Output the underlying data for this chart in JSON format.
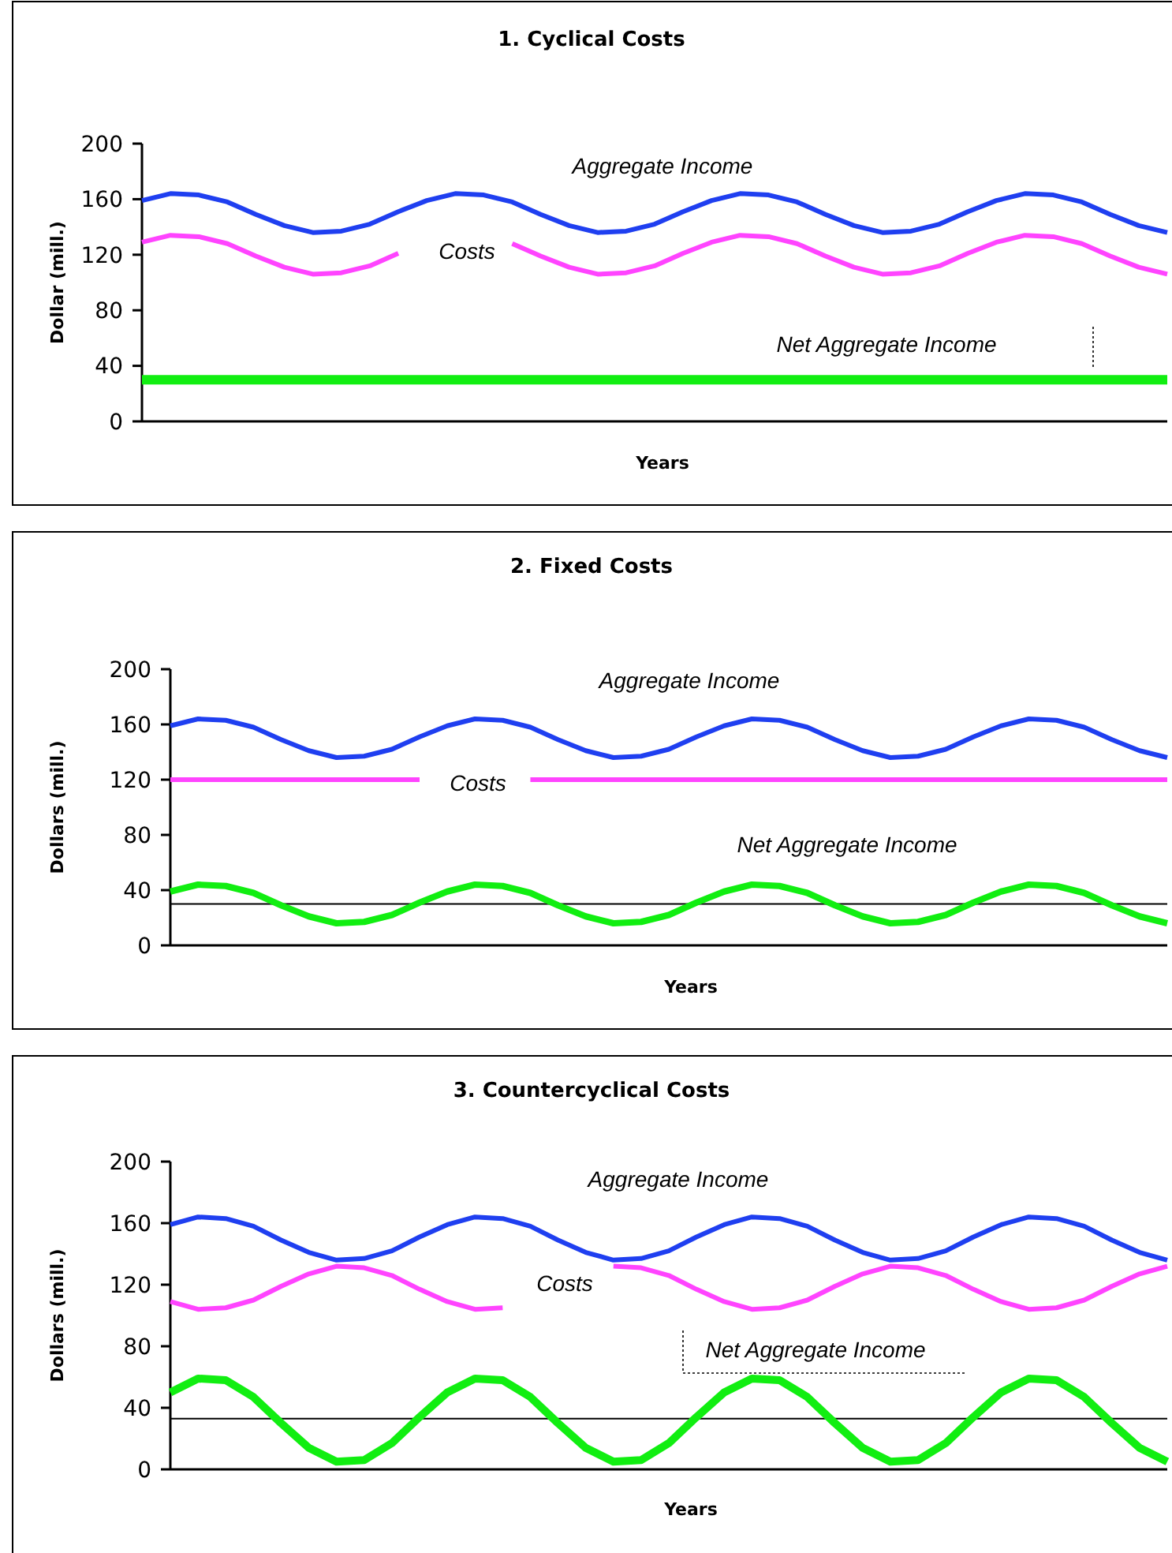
{
  "chart_data": [
    {
      "type": "line",
      "title": "1. Cyclical Costs",
      "xlabel": "Years",
      "ylabel": "Dollar (mill.)",
      "categories": [
        null,
        null,
        null,
        null,
        null,
        null,
        null,
        null,
        null,
        null,
        null,
        null,
        null,
        null,
        null,
        null,
        null,
        null,
        null,
        null,
        null,
        null,
        null,
        null,
        null,
        null,
        null,
        null,
        null,
        null,
        null,
        null,
        null,
        null,
        null,
        null,
        null
      ],
      "ylim": [
        0,
        200
      ],
      "yticks": [
        0,
        40,
        80,
        120,
        160,
        200
      ],
      "series": [
        {
          "name": "Aggregate Income",
          "color": "#1f3ff0",
          "values": [
            159,
            164,
            163,
            158,
            149,
            141,
            136,
            137,
            142,
            151,
            159,
            164,
            163,
            158,
            149,
            141,
            136,
            137,
            142,
            151,
            159,
            164,
            163,
            158,
            149,
            141,
            136,
            137,
            142,
            151,
            159,
            164,
            163,
            158,
            149,
            141,
            136
          ]
        },
        {
          "name": "Costs",
          "color": "#ff44ff",
          "values": [
            129,
            134,
            133,
            128,
            119,
            111,
            106,
            107,
            112,
            121,
            null,
            null,
            null,
            128,
            119,
            111,
            106,
            107,
            112,
            121,
            129,
            134,
            133,
            128,
            119,
            111,
            106,
            107,
            112,
            121,
            129,
            134,
            133,
            128,
            119,
            111,
            106
          ]
        },
        {
          "name": "Net Aggregate Income",
          "color": "#11ee11",
          "values": [
            30,
            30,
            30,
            30,
            30,
            30,
            30,
            30,
            30,
            30,
            30,
            30,
            30,
            30,
            30,
            30,
            30,
            30,
            30,
            30,
            30,
            30,
            30,
            30,
            30,
            30,
            30,
            30,
            30,
            30,
            30,
            30,
            30,
            30,
            30,
            30,
            30
          ]
        }
      ]
    },
    {
      "type": "line",
      "title": "2. Fixed Costs",
      "xlabel": "Years",
      "ylabel": "Dollars (mill.)",
      "categories": [
        null,
        null,
        null,
        null,
        null,
        null,
        null,
        null,
        null,
        null,
        null,
        null,
        null,
        null,
        null,
        null,
        null,
        null,
        null,
        null,
        null,
        null,
        null,
        null,
        null,
        null,
        null,
        null,
        null,
        null,
        null,
        null,
        null,
        null,
        null,
        null,
        null
      ],
      "ylim": [
        0,
        200
      ],
      "yticks": [
        0,
        40,
        80,
        120,
        160,
        200
      ],
      "ref_lines": [
        {
          "axis": "y",
          "value": 30,
          "color": "#000000"
        }
      ],
      "series": [
        {
          "name": "Aggregate Income",
          "color": "#1f3ff0",
          "values": [
            159,
            164,
            163,
            158,
            149,
            141,
            136,
            137,
            142,
            151,
            159,
            164,
            163,
            158,
            149,
            141,
            136,
            137,
            142,
            151,
            159,
            164,
            163,
            158,
            149,
            141,
            136,
            137,
            142,
            151,
            159,
            164,
            163,
            158,
            149,
            141,
            136
          ]
        },
        {
          "name": "Costs",
          "color": "#ff44ff",
          "values": [
            120,
            120,
            120,
            120,
            120,
            120,
            120,
            120,
            120,
            120,
            null,
            null,
            null,
            120,
            120,
            120,
            120,
            120,
            120,
            120,
            120,
            120,
            120,
            120,
            120,
            120,
            120,
            120,
            120,
            120,
            120,
            120,
            120,
            120,
            120,
            120,
            120
          ]
        },
        {
          "name": "Net Aggregate Income",
          "color": "#11ee11",
          "values": [
            39,
            44,
            43,
            38,
            29,
            21,
            16,
            17,
            22,
            31,
            39,
            44,
            43,
            38,
            29,
            21,
            16,
            17,
            22,
            31,
            39,
            44,
            43,
            38,
            29,
            21,
            16,
            17,
            22,
            31,
            39,
            44,
            43,
            38,
            29,
            21,
            16
          ]
        }
      ]
    },
    {
      "type": "line",
      "title": "3. Countercyclical Costs",
      "xlabel": "Years",
      "ylabel": "Dollars (mill.)",
      "categories": [
        null,
        null,
        null,
        null,
        null,
        null,
        null,
        null,
        null,
        null,
        null,
        null,
        null,
        null,
        null,
        null,
        null,
        null,
        null,
        null,
        null,
        null,
        null,
        null,
        null,
        null,
        null,
        null,
        null,
        null,
        null,
        null,
        null,
        null,
        null,
        null,
        null
      ],
      "ylim": [
        0,
        200
      ],
      "yticks": [
        0,
        40,
        80,
        120,
        160,
        200
      ],
      "ref_lines": [
        {
          "axis": "y",
          "value": 33,
          "color": "#000000"
        }
      ],
      "series": [
        {
          "name": "Aggregate Income",
          "color": "#1f3ff0",
          "values": [
            159,
            164,
            163,
            158,
            149,
            141,
            136,
            137,
            142,
            151,
            159,
            164,
            163,
            158,
            149,
            141,
            136,
            137,
            142,
            151,
            159,
            164,
            163,
            158,
            149,
            141,
            136,
            137,
            142,
            151,
            159,
            164,
            163,
            158,
            149,
            141,
            136
          ]
        },
        {
          "name": "Costs",
          "color": "#ff44ff",
          "values": [
            109,
            104,
            105,
            110,
            119,
            127,
            132,
            131,
            126,
            117,
            109,
            104,
            105,
            null,
            null,
            null,
            132,
            131,
            126,
            117,
            109,
            104,
            105,
            110,
            119,
            127,
            132,
            131,
            126,
            117,
            109,
            104,
            105,
            110,
            119,
            127,
            132
          ]
        },
        {
          "name": "Net Aggregate Income",
          "color": "#11ee11",
          "values": [
            50,
            59,
            58,
            47,
            30,
            14,
            5,
            6,
            17,
            34,
            50,
            59,
            58,
            47,
            30,
            14,
            5,
            6,
            17,
            34,
            50,
            59,
            58,
            47,
            30,
            14,
            5,
            6,
            17,
            34,
            50,
            59,
            58,
            47,
            30,
            14,
            5
          ]
        }
      ]
    }
  ]
}
